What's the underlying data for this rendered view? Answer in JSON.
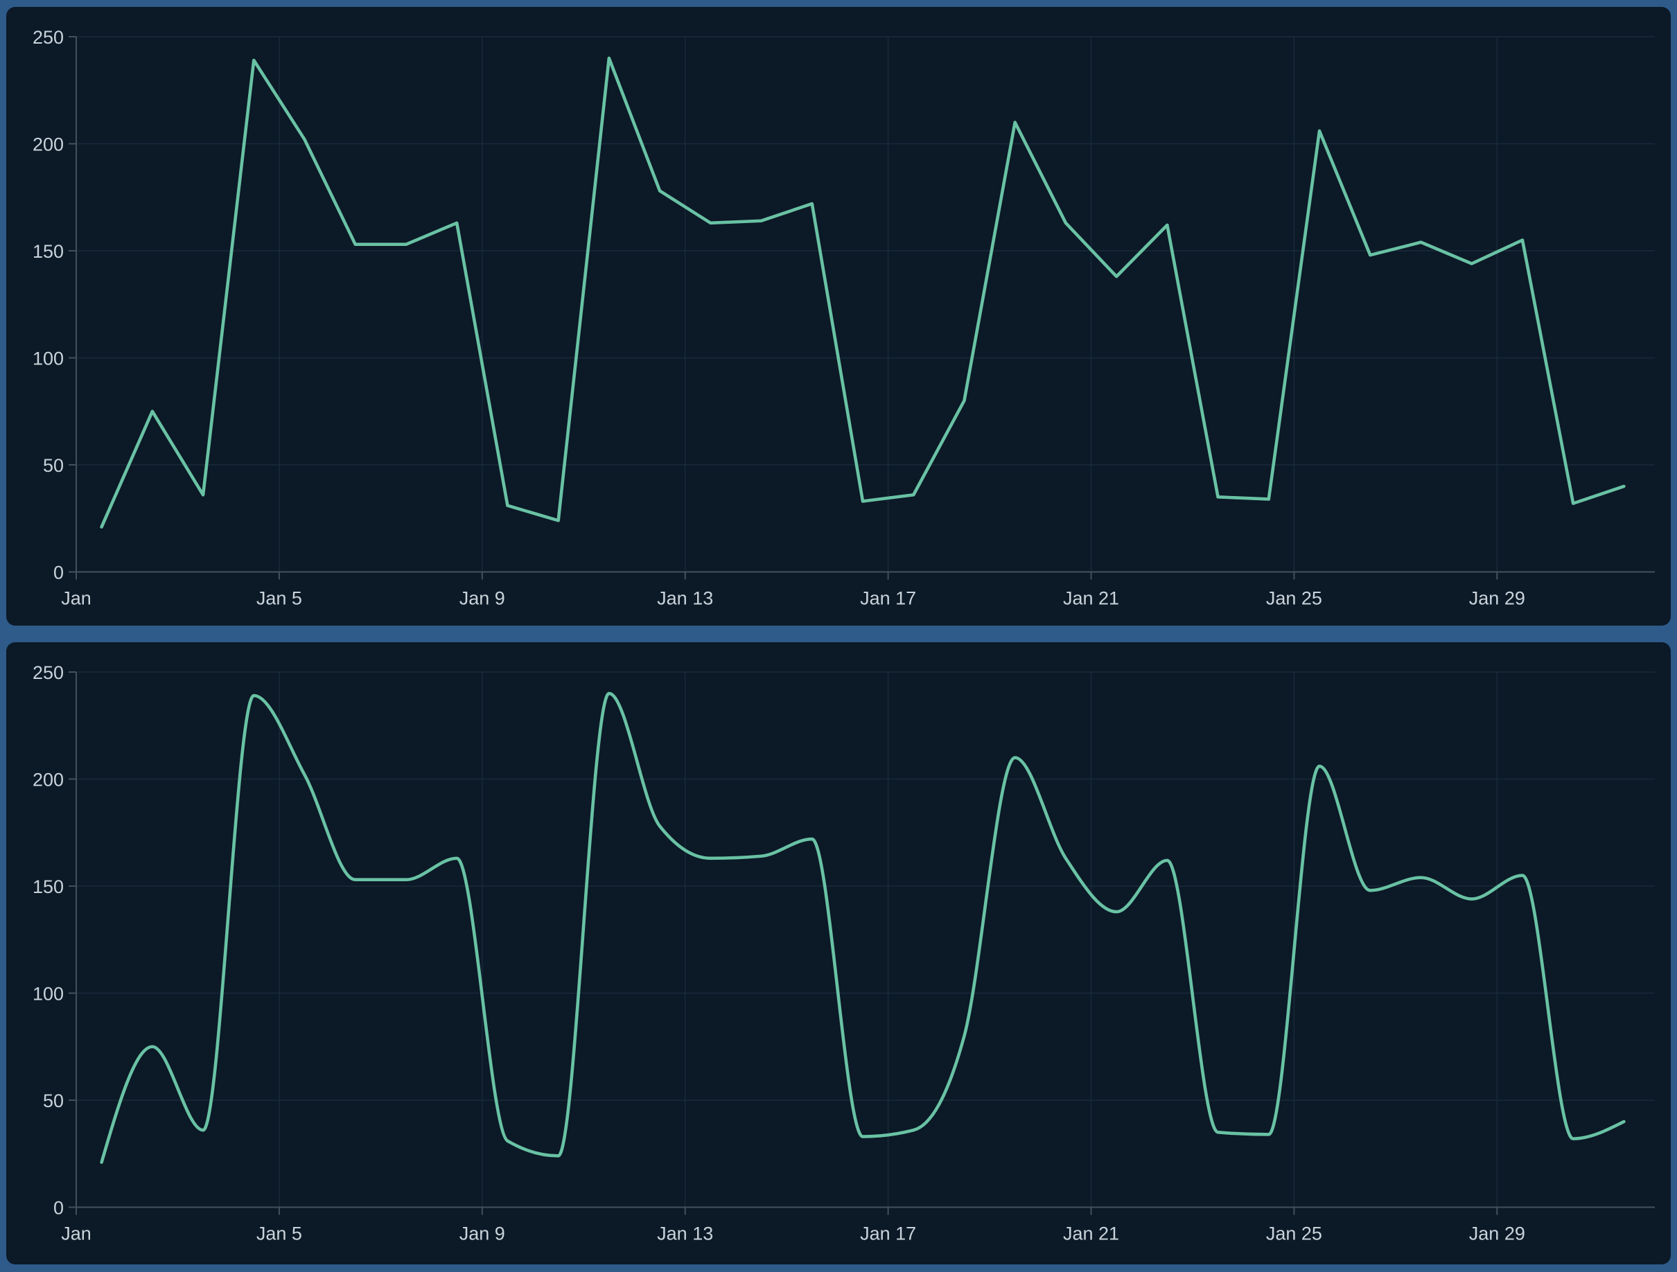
{
  "theme": {
    "page_background": "#2e5b8a",
    "panel_background": "#0c1927",
    "line_color": "#69c2a4",
    "grid_color": "#192a3a",
    "axis_color": "#44505b",
    "label_color": "#c9d3da"
  },
  "chart_data": [
    {
      "type": "line",
      "title": "",
      "interpolation": "linear",
      "x_unit": "day of January",
      "x": [
        1,
        2,
        3,
        4,
        5,
        6,
        7,
        8,
        9,
        10,
        11,
        12,
        13,
        14,
        15,
        16,
        17,
        18,
        19,
        20,
        21,
        22,
        23,
        24,
        25,
        26,
        27,
        28,
        29,
        30,
        31
      ],
      "values": [
        21,
        75,
        36,
        239,
        202,
        153,
        153,
        163,
        31,
        24,
        240,
        178,
        163,
        164,
        172,
        33,
        36,
        80,
        210,
        163,
        138,
        162,
        35,
        34,
        206,
        148,
        154,
        144,
        155,
        32,
        40
      ],
      "x_tick_labels": [
        "Jan",
        "Jan 5",
        "Jan 9",
        "Jan 13",
        "Jan 17",
        "Jan 21",
        "Jan 25",
        "Jan 29"
      ],
      "x_tick_days": [
        1,
        5,
        9,
        13,
        17,
        21,
        25,
        29
      ],
      "x_axis_span_days": 31,
      "ylim": [
        0,
        250
      ],
      "yticks": [
        0,
        50,
        100,
        150,
        200,
        250
      ],
      "grid": true,
      "legend": false
    },
    {
      "type": "line",
      "title": "",
      "interpolation": "smooth",
      "x_unit": "day of January",
      "x": [
        1,
        2,
        3,
        4,
        5,
        6,
        7,
        8,
        9,
        10,
        11,
        12,
        13,
        14,
        15,
        16,
        17,
        18,
        19,
        20,
        21,
        22,
        23,
        24,
        25,
        26,
        27,
        28,
        29,
        30,
        31
      ],
      "values": [
        21,
        75,
        36,
        239,
        202,
        153,
        153,
        163,
        31,
        24,
        240,
        178,
        163,
        164,
        172,
        33,
        36,
        80,
        210,
        163,
        138,
        162,
        35,
        34,
        206,
        148,
        154,
        144,
        155,
        32,
        40
      ],
      "x_tick_labels": [
        "Jan",
        "Jan 5",
        "Jan 9",
        "Jan 13",
        "Jan 17",
        "Jan 21",
        "Jan 25",
        "Jan 29"
      ],
      "x_tick_days": [
        1,
        5,
        9,
        13,
        17,
        21,
        25,
        29
      ],
      "x_axis_span_days": 31,
      "ylim": [
        0,
        250
      ],
      "yticks": [
        0,
        50,
        100,
        150,
        200,
        250
      ],
      "grid": true,
      "legend": false
    }
  ]
}
